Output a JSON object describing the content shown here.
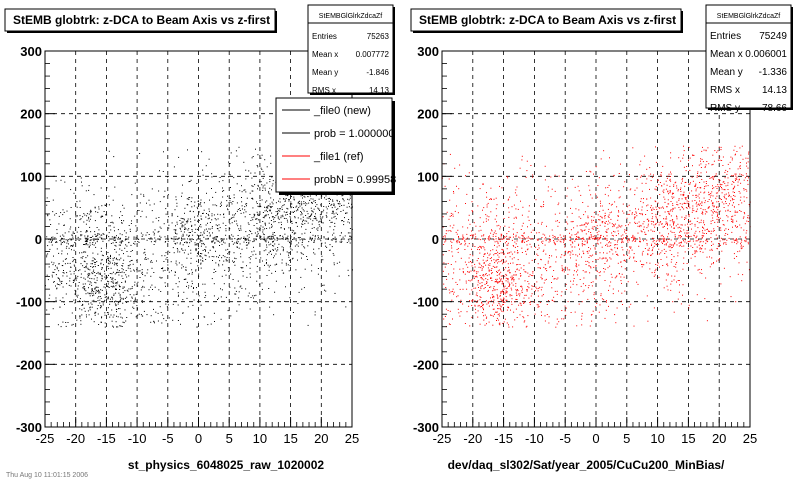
{
  "panels": [
    {
      "title": "StEMB globtrk: z-DCA to Beam Axis vs z-first",
      "xlabel": "st_physics_6048025_raw_1020002",
      "stats": {
        "name": "StEMBGlGlrkZdcaZf",
        "rows": [
          {
            "label": "Entries",
            "value": "75263"
          },
          {
            "label": "Mean x",
            "value": "0.007772"
          },
          {
            "label": "Mean y",
            "value": "-1.846"
          },
          {
            "label": "RMS x",
            "value": "14.13"
          }
        ]
      },
      "legend": {
        "entries": [
          {
            "label": "_file0 (new)",
            "color": "#000000"
          },
          {
            "label": "prob = 1.000000",
            "color": "#000000"
          },
          {
            "label": "_file1 (ref)",
            "color": "#ff0000"
          },
          {
            "label": "probN = 0.99958",
            "color": "#ff0000"
          }
        ]
      },
      "point_color": "#000000",
      "footer": "Thu Aug 10 11:01:15 2006"
    },
    {
      "title": "StEMB globtrk: z-DCA to Beam Axis vs z-first",
      "xlabel": "dev/daq_sl302/Sat/year_2005/CuCu200_MinBias/",
      "stats": {
        "name": "StEMBGlGlrkZdcaZf",
        "rows": [
          {
            "label": "Entries",
            "value": "75249"
          },
          {
            "label": "Mean x",
            "value": "0.006001"
          },
          {
            "label": "Mean y",
            "value": "-1.336"
          },
          {
            "label": "RMS x",
            "value": "14.13"
          },
          {
            "label": "RMS y",
            "value": "78.66"
          }
        ]
      },
      "point_color": "#ff0000"
    }
  ],
  "chart_data": [
    {
      "type": "scatter",
      "title": "StEMB globtrk: z-DCA to Beam Axis vs z-first",
      "xlabel": "st_physics_6048025_raw_1020002",
      "ylabel": "",
      "xlim": [
        -25,
        25
      ],
      "ylim": [
        -300,
        300
      ],
      "xticks": [
        -25,
        -20,
        -15,
        -10,
        -5,
        0,
        5,
        10,
        15,
        20,
        25
      ],
      "yticks": [
        -300,
        -200,
        -100,
        0,
        100,
        200,
        300
      ],
      "grid": true,
      "legend_position": "top-right",
      "series": [
        {
          "name": "_file0 (new)",
          "color": "#000000",
          "entries": 75263,
          "mean_x": 0.007772,
          "mean_y": -1.846,
          "rms_x": 14.13
        }
      ]
    },
    {
      "type": "scatter",
      "title": "StEMB globtrk: z-DCA to Beam Axis vs z-first",
      "xlabel": "dev/daq_sl302/Sat/year_2005/CuCu200_MinBias/",
      "ylabel": "",
      "xlim": [
        -25,
        25
      ],
      "ylim": [
        -300,
        300
      ],
      "xticks": [
        -25,
        -20,
        -15,
        -10,
        -5,
        0,
        5,
        10,
        15,
        20,
        25
      ],
      "yticks": [
        -300,
        -200,
        -100,
        0,
        100,
        200,
        300
      ],
      "grid": true,
      "series": [
        {
          "name": "_file1 (ref)",
          "color": "#ff0000",
          "entries": 75249,
          "mean_x": 0.006001,
          "mean_y": -1.336,
          "rms_x": 14.13,
          "rms_y": 78.66
        }
      ]
    }
  ]
}
